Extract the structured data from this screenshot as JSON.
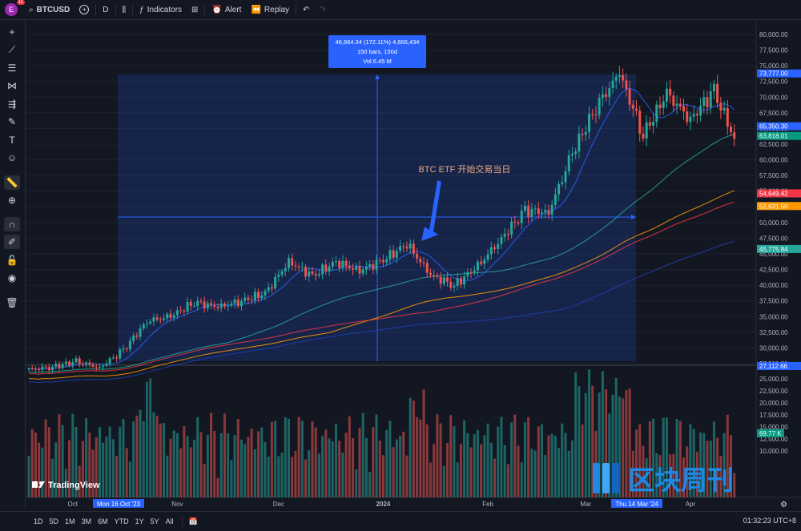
{
  "topbar": {
    "avatar_letter": "E",
    "notif_count": "11",
    "symbol": "BTCUSD",
    "interval": "D",
    "indicators_label": "Indicators",
    "alert_label": "Alert",
    "replay_label": "Replay"
  },
  "measure": {
    "line1": "46,664.34 (172.11%) 4,666,434",
    "line2": "150 bars, 150d",
    "line3": "Vol 6.45 M"
  },
  "annotation": "BTC ETF 开始交易当日",
  "price_axis": {
    "ticks": [
      "80,000.00",
      "77,500.00",
      "75,000.00",
      "72,500.00",
      "70,000.00",
      "67,500.00",
      "65,000.00",
      "62,500.00",
      "60,000.00",
      "57,500.00",
      "55,000.00",
      "52,500.00",
      "50,000.00",
      "47,500.00",
      "45,000.00",
      "42,500.00",
      "40,000.00",
      "37,500.00",
      "35,000.00",
      "32,500.00",
      "30,000.00",
      "27,500.00"
    ],
    "labels": [
      {
        "text": "73,777.00",
        "color": "#2962ff"
      },
      {
        "text": "65,350.30",
        "color": "#2962ff"
      },
      {
        "text": "63,818.01",
        "color": "#089981"
      },
      {
        "text": "54,649.42",
        "color": "#f23645"
      },
      {
        "text": "52,631.50",
        "color": "#ff9800"
      },
      {
        "text": "45,775.84",
        "color": "#26a69a"
      },
      {
        "text": "27,112.66",
        "color": "#2962ff"
      }
    ]
  },
  "volume_axis": {
    "ticks": [
      "25,000.00",
      "22,500.00",
      "20,000.00",
      "17,500.00",
      "15,000.00",
      "12,500.00",
      "10,000.00"
    ],
    "label": "69.77 K"
  },
  "time_axis": {
    "labels": [
      "Oct",
      "Nov",
      "Dec",
      "2024",
      "Feb",
      "Mar",
      "Apr"
    ],
    "highlight_start": "Mon 16 Oct '23",
    "highlight_end": "Thu 14 Mar '24"
  },
  "watermark": {
    "tradingview": "TradingView",
    "publisher": "区块周刊"
  },
  "bottombar": {
    "ranges": [
      "1D",
      "5D",
      "1M",
      "3M",
      "6M",
      "YTD",
      "1Y",
      "5Y",
      "All"
    ],
    "clock": "01:32:23 UTC+8"
  },
  "colors": {
    "up": "#26a69a",
    "down": "#ef5350",
    "accent": "#2962ff",
    "background": "#131722"
  },
  "chart_data": {
    "type": "candlestick",
    "symbol": "BTCUSD",
    "interval": "1D",
    "ylim": [
      25000,
      80000
    ],
    "measure_range": {
      "start": "2023-10-16",
      "end": "2024-03-14",
      "from_price": 27112.66,
      "to_price": 73777.0,
      "change": 46664.34,
      "change_pct": 172.11,
      "bars": 150
    },
    "weekly_closes": [
      {
        "date": "2023-09-18",
        "close": 26500
      },
      {
        "date": "2023-09-25",
        "close": 27000
      },
      {
        "date": "2023-10-02",
        "close": 27800
      },
      {
        "date": "2023-10-09",
        "close": 26900
      },
      {
        "date": "2023-10-16",
        "close": 29600
      },
      {
        "date": "2023-10-23",
        "close": 34300
      },
      {
        "date": "2023-10-30",
        "close": 35000
      },
      {
        "date": "2023-11-06",
        "close": 37300
      },
      {
        "date": "2023-11-13",
        "close": 36500
      },
      {
        "date": "2023-11-20",
        "close": 37500
      },
      {
        "date": "2023-11-27",
        "close": 38700
      },
      {
        "date": "2023-12-04",
        "close": 43800
      },
      {
        "date": "2023-12-11",
        "close": 41500
      },
      {
        "date": "2023-12-18",
        "close": 43700
      },
      {
        "date": "2023-12-25",
        "close": 42300
      },
      {
        "date": "2024-01-01",
        "close": 44000
      },
      {
        "date": "2024-01-08",
        "close": 46600
      },
      {
        "date": "2024-01-15",
        "close": 41600
      },
      {
        "date": "2024-01-22",
        "close": 40000
      },
      {
        "date": "2024-01-29",
        "close": 43000
      },
      {
        "date": "2024-02-05",
        "close": 47500
      },
      {
        "date": "2024-02-12",
        "close": 51900
      },
      {
        "date": "2024-02-19",
        "close": 51700
      },
      {
        "date": "2024-02-26",
        "close": 61000
      },
      {
        "date": "2024-03-04",
        "close": 68500
      },
      {
        "date": "2024-03-11",
        "close": 73700
      },
      {
        "date": "2024-03-18",
        "close": 64000
      },
      {
        "date": "2024-03-25",
        "close": 70500
      },
      {
        "date": "2024-04-01",
        "close": 66500
      },
      {
        "date": "2024-04-08",
        "close": 71000
      },
      {
        "date": "2024-04-15",
        "close": 62000
      }
    ]
  }
}
